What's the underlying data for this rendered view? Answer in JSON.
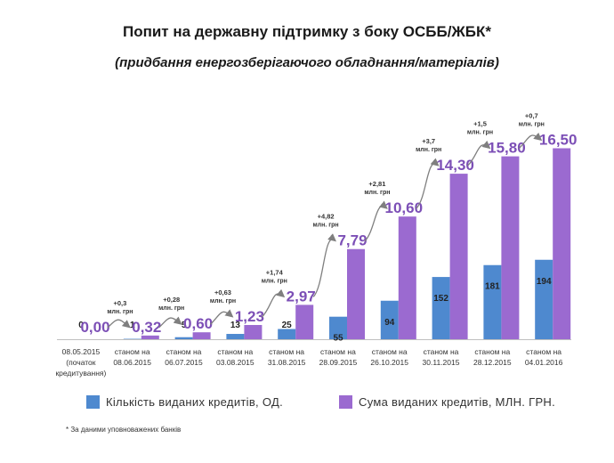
{
  "title": "Попит на державну підтримку з боку ОСББ/ЖБК*",
  "subtitle": "(придбання енергозберігаючого обладнання/матеріалів)",
  "colors": {
    "count": "#4e89cf",
    "sum": "#9b6ad0",
    "sum_label": "#7c4fb6",
    "arrow": "#7f7f7f"
  },
  "chart_data": {
    "type": "bar",
    "title": "Попит на державну підтримку з боку ОСББ/ЖБК*",
    "subtitle": "(придбання енергозберігаючого обладнання/матеріалів)",
    "categories": [
      [
        "08.05.2015",
        "(початок",
        "кредитування)"
      ],
      [
        "станом на",
        "08.06.2015"
      ],
      [
        "станом на",
        "06.07.2015"
      ],
      [
        "станом на",
        "03.08.2015"
      ],
      [
        "станом на",
        "31.08.2015"
      ],
      [
        "станом на",
        "28.09.2015"
      ],
      [
        "станом на",
        "26.10.2015"
      ],
      [
        "станом на",
        "30.11.2015"
      ],
      [
        "станом на",
        "28.12.2015"
      ],
      [
        "станом на",
        "04.01.2016"
      ]
    ],
    "series": [
      {
        "name": "Кількість виданих кредитів, ОД.",
        "values": [
          0,
          1,
          5,
          13,
          25,
          55,
          94,
          152,
          181,
          194
        ],
        "labels": [
          "0",
          "1",
          "5",
          "13",
          "25",
          "55",
          "94",
          "152",
          "181",
          "194"
        ]
      },
      {
        "name": "Сума виданих кредитів, МЛН. ГРН.",
        "values": [
          0.0,
          0.32,
          0.6,
          1.23,
          2.97,
          7.79,
          10.6,
          14.3,
          15.8,
          16.5
        ],
        "labels": [
          "0,00",
          "0,32",
          "0,60",
          "1,23",
          "2,97",
          "7,79",
          "10,60",
          "14,30",
          "15,80",
          "16,50"
        ]
      }
    ],
    "increments": [
      [
        "+0,3",
        "млн. грн"
      ],
      [
        "+0,28",
        "млн. грн"
      ],
      [
        "+0,63",
        "млн. грн"
      ],
      [
        "+1,74",
        "млн. грн"
      ],
      [
        "+4,82",
        "млн. грн"
      ],
      [
        "+2,81",
        "млн. грн"
      ],
      [
        "+3,7",
        "млн. грн"
      ],
      [
        "+1,5",
        "млн. грн"
      ],
      [
        "+0,7",
        "млн. грн"
      ]
    ],
    "legend": "bottom",
    "grid": false
  },
  "footnote": "* За даними уповноважених банків"
}
